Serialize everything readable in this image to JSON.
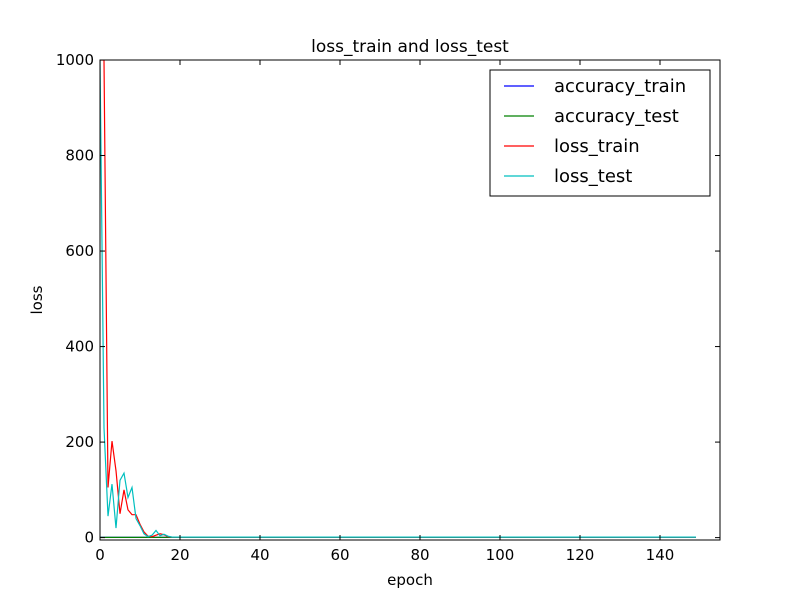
{
  "chart_data": {
    "type": "line",
    "title": "loss_train and loss_test",
    "xlabel": "epoch",
    "ylabel": "loss",
    "xlim": [
      0,
      155
    ],
    "ylim": [
      -5,
      1000
    ],
    "xticks": [
      0,
      20,
      40,
      60,
      80,
      100,
      120,
      140
    ],
    "yticks": [
      0,
      200,
      400,
      600,
      800,
      1000
    ],
    "legend_position": "top-right",
    "series": [
      {
        "name": "accuracy_train",
        "color": "#0000ff",
        "points": [
          [
            0,
            0.5
          ],
          [
            149,
            0.95
          ]
        ]
      },
      {
        "name": "accuracy_test",
        "color": "#008000",
        "points": [
          [
            0,
            0.5
          ],
          [
            149,
            0.95
          ]
        ]
      },
      {
        "name": "loss_train",
        "color": "#ff0000",
        "points": [
          [
            0,
            1000
          ],
          [
            1,
            1000
          ],
          [
            2,
            105
          ],
          [
            3,
            202
          ],
          [
            4,
            140
          ],
          [
            5,
            50
          ],
          [
            6,
            100
          ],
          [
            7,
            58
          ],
          [
            8,
            48
          ],
          [
            9,
            48
          ],
          [
            10,
            28
          ],
          [
            11,
            12
          ],
          [
            12,
            3
          ],
          [
            13,
            2
          ],
          [
            14,
            5
          ],
          [
            15,
            8
          ],
          [
            16,
            6
          ],
          [
            17,
            2
          ],
          [
            18,
            1
          ],
          [
            20,
            1
          ],
          [
            149,
            1
          ]
        ]
      },
      {
        "name": "loss_test",
        "color": "#00bfbf",
        "points": [
          [
            0,
            1000
          ],
          [
            1,
            230
          ],
          [
            2,
            45
          ],
          [
            3,
            112
          ],
          [
            4,
            20
          ],
          [
            5,
            120
          ],
          [
            6,
            135
          ],
          [
            7,
            84
          ],
          [
            8,
            105
          ],
          [
            9,
            40
          ],
          [
            10,
            25
          ],
          [
            11,
            8
          ],
          [
            12,
            2
          ],
          [
            13,
            5
          ],
          [
            14,
            15
          ],
          [
            15,
            4
          ],
          [
            16,
            7
          ],
          [
            17,
            3
          ],
          [
            18,
            1
          ],
          [
            20,
            1
          ],
          [
            149,
            1
          ]
        ]
      }
    ]
  }
}
